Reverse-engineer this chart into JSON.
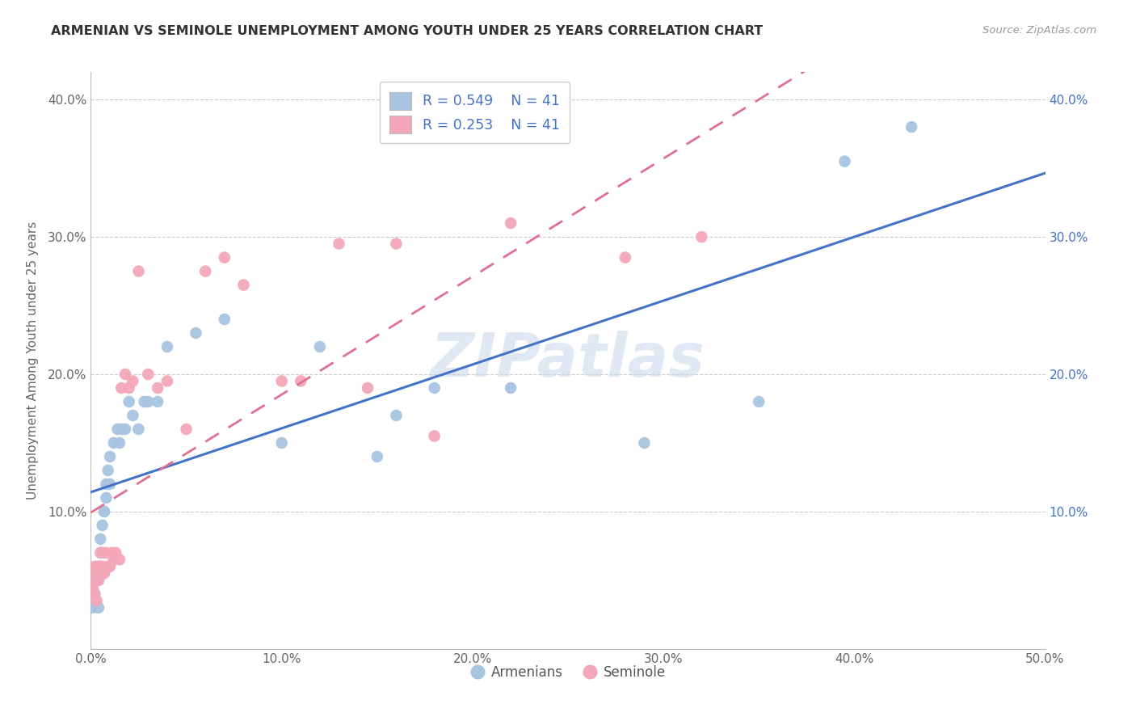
{
  "title": "ARMENIAN VS SEMINOLE UNEMPLOYMENT AMONG YOUTH UNDER 25 YEARS CORRELATION CHART",
  "source": "Source: ZipAtlas.com",
  "ylabel": "Unemployment Among Youth under 25 years",
  "xlim": [
    0.0,
    0.5
  ],
  "ylim": [
    0.0,
    0.42
  ],
  "xticks": [
    0.0,
    0.1,
    0.2,
    0.3,
    0.4,
    0.5
  ],
  "xticklabels": [
    "0.0%",
    "10.0%",
    "20.0%",
    "30.0%",
    "40.0%",
    "50.0%"
  ],
  "yticks": [
    0.0,
    0.1,
    0.2,
    0.3,
    0.4
  ],
  "yticklabels": [
    "",
    "10.0%",
    "20.0%",
    "30.0%",
    "40.0%"
  ],
  "right_yticks": [
    0.1,
    0.2,
    0.3,
    0.4
  ],
  "right_yticklabels": [
    "10.0%",
    "20.0%",
    "30.0%",
    "40.0%"
  ],
  "legend_r1": "R = 0.549",
  "legend_n1": "N = 41",
  "legend_r2": "R = 0.253",
  "legend_n2": "N = 41",
  "legend_label1": "Armenians",
  "legend_label2": "Seminole",
  "blue_color": "#a8c4e0",
  "pink_color": "#f4a7b9",
  "blue_line_color": "#4472c4",
  "pink_line_color": "#e07090",
  "watermark": "ZIPatlas",
  "arm_x": [
    0.001,
    0.002,
    0.003,
    0.003,
    0.004,
    0.004,
    0.005,
    0.005,
    0.006,
    0.006,
    0.007,
    0.007,
    0.008,
    0.008,
    0.009,
    0.01,
    0.01,
    0.012,
    0.014,
    0.015,
    0.016,
    0.018,
    0.02,
    0.022,
    0.025,
    0.028,
    0.03,
    0.035,
    0.04,
    0.055,
    0.07,
    0.1,
    0.12,
    0.15,
    0.16,
    0.18,
    0.22,
    0.29,
    0.35,
    0.395,
    0.43
  ],
  "arm_y": [
    0.03,
    0.04,
    0.05,
    0.06,
    0.03,
    0.05,
    0.06,
    0.08,
    0.07,
    0.09,
    0.1,
    0.1,
    0.11,
    0.12,
    0.13,
    0.12,
    0.14,
    0.15,
    0.16,
    0.15,
    0.16,
    0.16,
    0.18,
    0.17,
    0.16,
    0.18,
    0.18,
    0.18,
    0.22,
    0.23,
    0.24,
    0.15,
    0.22,
    0.14,
    0.17,
    0.19,
    0.19,
    0.15,
    0.18,
    0.355,
    0.38
  ],
  "sem_x": [
    0.001,
    0.001,
    0.002,
    0.002,
    0.003,
    0.003,
    0.004,
    0.004,
    0.005,
    0.005,
    0.006,
    0.006,
    0.007,
    0.008,
    0.009,
    0.01,
    0.011,
    0.012,
    0.013,
    0.015,
    0.016,
    0.018,
    0.02,
    0.022,
    0.025,
    0.03,
    0.035,
    0.04,
    0.05,
    0.06,
    0.07,
    0.08,
    0.1,
    0.11,
    0.13,
    0.145,
    0.16,
    0.18,
    0.22,
    0.28,
    0.32
  ],
  "sem_y": [
    0.045,
    0.05,
    0.06,
    0.04,
    0.055,
    0.035,
    0.06,
    0.05,
    0.06,
    0.07,
    0.06,
    0.055,
    0.055,
    0.07,
    0.06,
    0.06,
    0.07,
    0.065,
    0.07,
    0.065,
    0.19,
    0.2,
    0.19,
    0.195,
    0.275,
    0.2,
    0.19,
    0.195,
    0.16,
    0.275,
    0.285,
    0.265,
    0.195,
    0.195,
    0.295,
    0.19,
    0.295,
    0.155,
    0.31,
    0.285,
    0.3
  ],
  "figsize": [
    14.06,
    8.92
  ],
  "dpi": 100
}
